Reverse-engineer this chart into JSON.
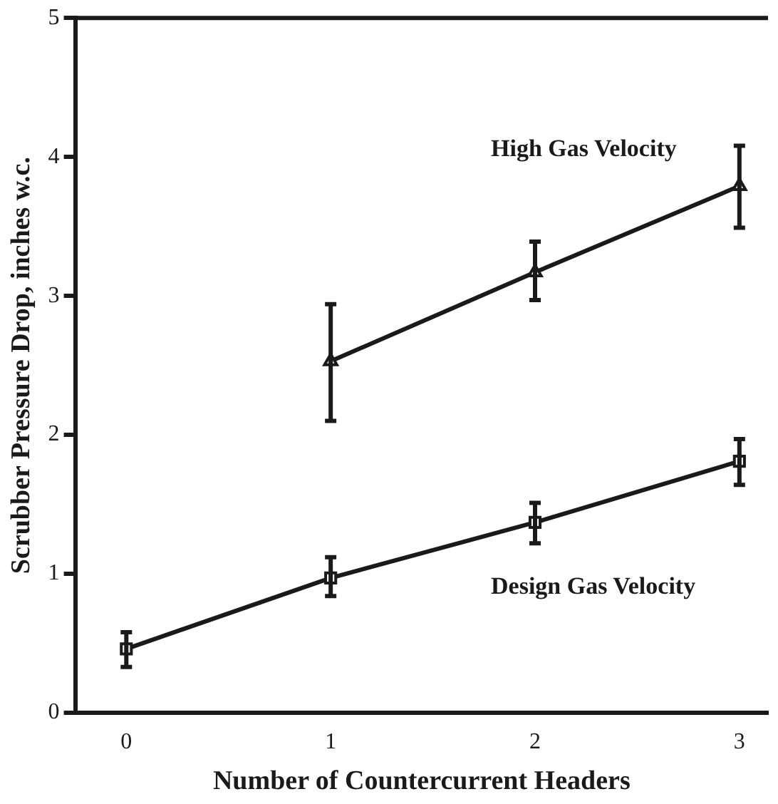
{
  "chart_data": {
    "type": "line",
    "xlabel": "Number of Countercurrent Headers",
    "ylabel": "Scrubber Pressure Drop, inches w.c.",
    "xlim": [
      -0.25,
      3.14
    ],
    "xticks": [
      0,
      1,
      2,
      3
    ],
    "ylim": [
      0,
      5
    ],
    "yticks": [
      0,
      1,
      2,
      3,
      4,
      5
    ],
    "grid": false,
    "legend": false,
    "line_style": "solid",
    "series": [
      {
        "name": "High Gas Velocity",
        "color": "#1a1a1a",
        "marker": "triangle",
        "x": [
          1,
          2,
          3
        ],
        "values": [
          2.53,
          3.17,
          3.79
        ],
        "errors": [
          [
            2.1,
            2.94
          ],
          [
            2.97,
            3.39
          ],
          [
            3.49,
            4.08
          ]
        ]
      },
      {
        "name": "Design Gas Velocity",
        "color": "#1a1a1a",
        "marker": "square",
        "x": [
          0,
          1,
          2,
          3
        ],
        "values": [
          0.46,
          0.97,
          1.37,
          1.81
        ],
        "errors": [
          [
            0.33,
            0.58
          ],
          [
            0.84,
            1.12
          ],
          [
            1.22,
            1.51
          ],
          [
            1.64,
            1.97
          ]
        ]
      }
    ]
  }
}
